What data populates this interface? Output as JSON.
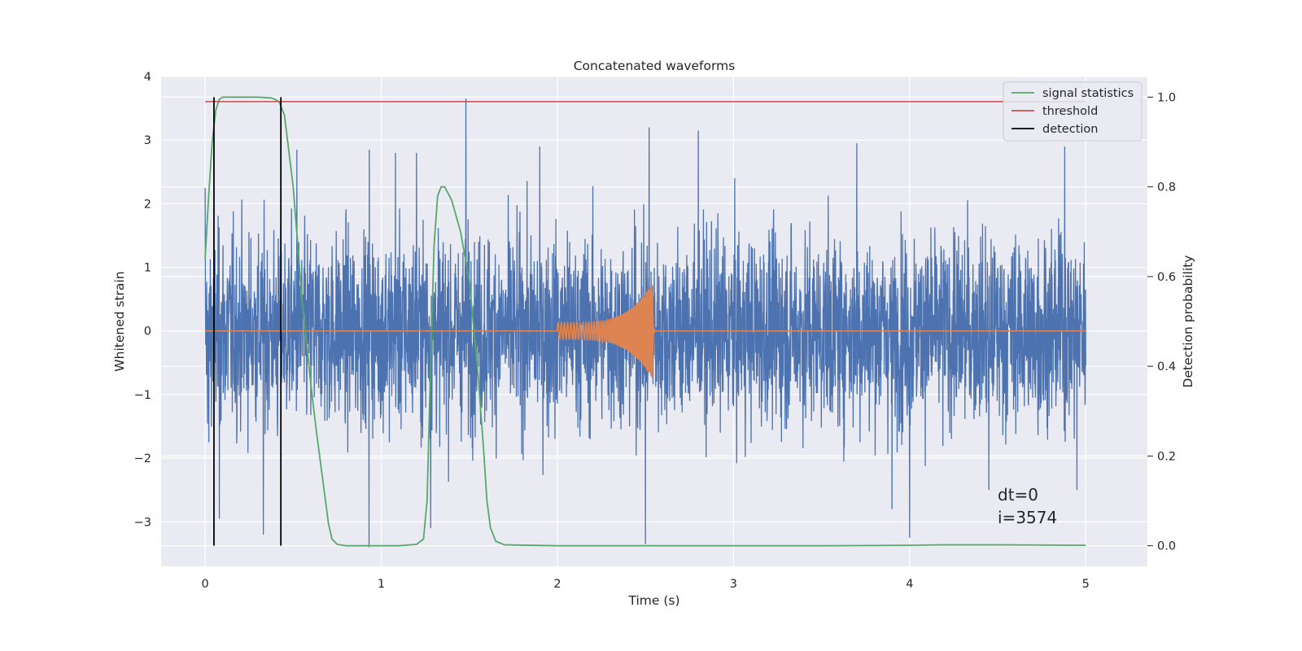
{
  "chart_data": {
    "type": "line",
    "title": "Concatenated waveforms",
    "xlabel": "Time (s)",
    "ylabel": "Whitened strain",
    "y2label": "Detection probability",
    "xlim": [
      -0.25,
      5.35
    ],
    "ylim": [
      -3.7,
      4.0
    ],
    "y2lim": [
      -0.046,
      1.046
    ],
    "x_ticks": [
      0,
      1,
      2,
      3,
      4,
      5
    ],
    "y_ticks": [
      -3,
      -2,
      -1,
      0,
      1,
      2,
      3,
      4
    ],
    "y2_ticks": [
      0.0,
      0.2,
      0.4,
      0.6,
      0.8,
      1.0
    ],
    "x_tick_labels": [
      "0",
      "1",
      "2",
      "3",
      "4",
      "5"
    ],
    "y_tick_labels": [
      "−3",
      "−2",
      "−1",
      "0",
      "1",
      "2",
      "3",
      "4"
    ],
    "y2_tick_labels": [
      "0.0",
      "0.2",
      "0.4",
      "0.6",
      "0.8",
      "1.0"
    ],
    "grid": true,
    "legend_position": "top-right",
    "colors": {
      "background": "#eaeaf2",
      "grid": "#ffffff",
      "strain": "#4c72b0",
      "template": "#dd8452",
      "statistic": "#55a868",
      "threshold": "#c44e52",
      "detection": "#000000"
    },
    "series": [
      {
        "name": "",
        "axis": "left",
        "kind": "noise",
        "x_range": [
          0,
          5
        ],
        "amplitude_rms": 0.75,
        "peak_values": [
          [
            0.0,
            2.25
          ],
          [
            0.02,
            -1.75
          ],
          [
            0.08,
            -2.95
          ],
          [
            0.33,
            -3.2
          ],
          [
            0.41,
            -1.65
          ],
          [
            0.52,
            2.85
          ],
          [
            0.93,
            -3.4
          ],
          [
            0.93,
            2.85
          ],
          [
            1.08,
            2.8
          ],
          [
            1.2,
            2.8
          ],
          [
            1.28,
            -3.1
          ],
          [
            1.48,
            3.65
          ],
          [
            1.9,
            2.9
          ],
          [
            2.5,
            -3.35
          ],
          [
            2.52,
            3.2
          ],
          [
            2.8,
            3.15
          ],
          [
            3.7,
            2.95
          ],
          [
            3.9,
            -2.8
          ],
          [
            4.0,
            -3.25
          ],
          [
            4.45,
            -2.5
          ],
          [
            4.88,
            2.9
          ],
          [
            4.95,
            -2.5
          ]
        ]
      },
      {
        "name": "",
        "axis": "left",
        "kind": "chirp",
        "x_range": [
          2.0,
          2.54
        ],
        "amplitude_start": 0.13,
        "amplitude_peak": 0.75,
        "ringdown_end": 2.56
      },
      {
        "name": "signal statistics",
        "axis": "right",
        "x": [
          0.0,
          0.02,
          0.04,
          0.06,
          0.08,
          0.1,
          0.15,
          0.2,
          0.3,
          0.38,
          0.42,
          0.45,
          0.5,
          0.55,
          0.6,
          0.63,
          0.65,
          0.68,
          0.7,
          0.72,
          0.75,
          0.8,
          0.9,
          1.0,
          1.1,
          1.2,
          1.24,
          1.26,
          1.28,
          1.3,
          1.32,
          1.34,
          1.36,
          1.4,
          1.45,
          1.5,
          1.55,
          1.58,
          1.6,
          1.62,
          1.65,
          1.7,
          2.0,
          3.0,
          3.5,
          4.0,
          4.2,
          4.5,
          5.0
        ],
        "y": [
          0.64,
          0.78,
          0.9,
          0.97,
          0.995,
          1.0,
          1.0,
          1.0,
          1.0,
          0.998,
          0.99,
          0.96,
          0.8,
          0.55,
          0.36,
          0.26,
          0.2,
          0.11,
          0.05,
          0.015,
          0.003,
          0.0,
          0.0,
          0.0,
          0.0,
          0.003,
          0.015,
          0.1,
          0.4,
          0.67,
          0.78,
          0.8,
          0.8,
          0.77,
          0.7,
          0.59,
          0.38,
          0.22,
          0.1,
          0.04,
          0.01,
          0.002,
          0.0,
          0.0,
          0.0,
          0.001,
          0.002,
          0.002,
          0.001
        ]
      },
      {
        "name": "threshold",
        "axis": "right",
        "x": [
          0.0,
          5.0
        ],
        "y": [
          0.99,
          0.99
        ]
      },
      {
        "name": "detection",
        "axis": "right",
        "segments": [
          {
            "x": 0.05,
            "y": [
              0.0,
              1.0
            ]
          },
          {
            "x": 0.43,
            "y": [
              0.0,
              1.0
            ]
          }
        ]
      }
    ],
    "annotations": [
      "dt=0",
      "i=3574"
    ]
  }
}
